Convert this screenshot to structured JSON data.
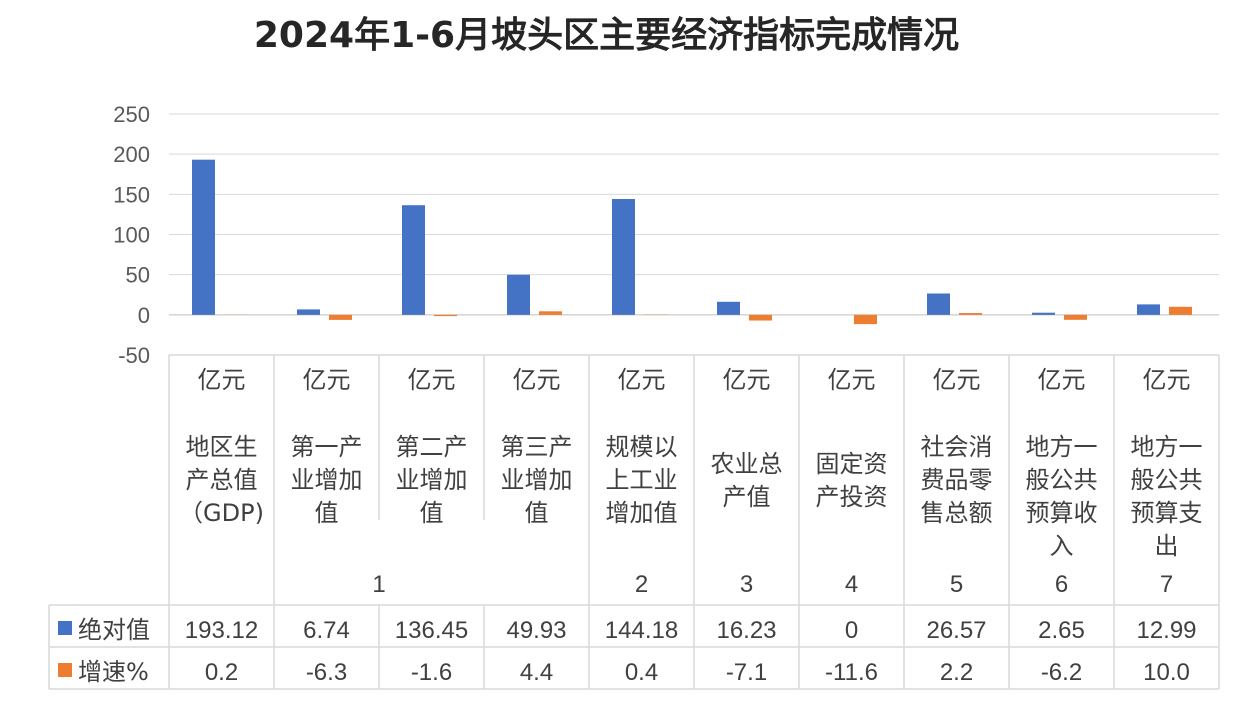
{
  "title": "2024年1-6月坡头区主要经济指标完成情况",
  "chart_data": {
    "type": "bar",
    "title": "2024年1-6月坡头区主要经济指标完成情况",
    "ylim": [
      -50,
      250
    ],
    "yticks": [
      250,
      200,
      150,
      100,
      50,
      0,
      -50
    ],
    "grid": true,
    "legend_placement": "bottom-left (in data table)",
    "categories": [
      {
        "unit": "亿元",
        "lines": [
          "地区生",
          "产总值",
          "（GDP)"
        ],
        "group": ""
      },
      {
        "unit": "亿元",
        "lines": [
          "第一产",
          "业增加",
          "值"
        ],
        "group": ""
      },
      {
        "unit": "亿元",
        "lines": [
          "第二产",
          "业增加",
          "值"
        ],
        "group": "1"
      },
      {
        "unit": "亿元",
        "lines": [
          "第三产",
          "业增加",
          "值"
        ],
        "group": ""
      },
      {
        "unit": "亿元",
        "lines": [
          "规模以",
          "上工业",
          "增加值"
        ],
        "group": "2"
      },
      {
        "unit": "亿元",
        "lines": [
          "农业总",
          "产值"
        ],
        "group": "3"
      },
      {
        "unit": "亿元",
        "lines": [
          "固定资",
          "产投资"
        ],
        "group": "4"
      },
      {
        "unit": "亿元",
        "lines": [
          "社会消",
          "费品零",
          "售总额"
        ],
        "group": "5"
      },
      {
        "unit": "亿元",
        "lines": [
          "地方一",
          "般公共",
          "预算收",
          "入"
        ],
        "group": "6"
      },
      {
        "unit": "亿元",
        "lines": [
          "地方一",
          "般公共",
          "预算支",
          "出"
        ],
        "group": "7"
      }
    ],
    "series": [
      {
        "name": "绝对值",
        "color": "#4472C4",
        "values": [
          193.12,
          6.74,
          136.45,
          49.93,
          144.18,
          16.23,
          0,
          26.57,
          2.65,
          12.99
        ],
        "labels": [
          "193.12",
          "6.74",
          "136.45",
          "49.93",
          "144.18",
          "16.23",
          "0",
          "26.57",
          "2.65",
          "12.99"
        ]
      },
      {
        "name": "增速%",
        "color": "#ED7D31",
        "values": [
          0.2,
          -6.3,
          -1.6,
          4.4,
          0.4,
          -7.1,
          -11.6,
          2.2,
          -6.2,
          10.0
        ],
        "labels": [
          "0.2",
          "-6.3",
          "-1.6",
          "4.4",
          "0.4",
          "-7.1",
          "-11.6",
          "2.2",
          "-6.2",
          "10.0"
        ]
      }
    ]
  }
}
